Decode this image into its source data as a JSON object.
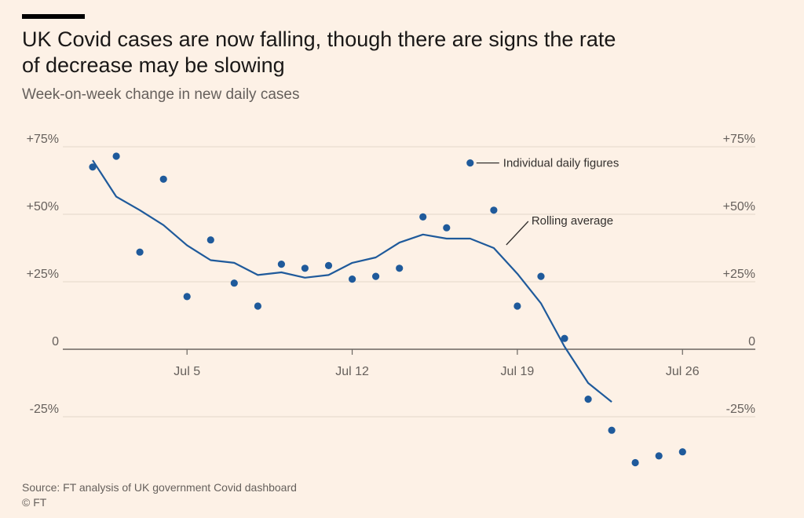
{
  "header": {
    "title": "UK Covid cases are now falling, though there are signs the rate of decrease may be slowing",
    "subtitle": "Week-on-week change in new daily cases"
  },
  "footer": {
    "source": "Source: FT analysis of UK government Covid dashboard",
    "copyright": "© FT"
  },
  "colors": {
    "background": "#fdf1e6",
    "series": "#1f5a9b",
    "gridline": "#e3d6cb",
    "zero_line": "#6b6661",
    "text": "#66605c"
  },
  "chart_data": {
    "type": "line",
    "title": "UK Covid cases are now falling, though there are signs the rate of decrease may be slowing",
    "subtitle": "Week-on-week change in new daily cases",
    "xlabel": "",
    "ylabel": "",
    "x_start": "Jul 1",
    "x_tick_labels": [
      {
        "day": 5,
        "label": "Jul 5"
      },
      {
        "day": 12,
        "label": "Jul 12"
      },
      {
        "day": 19,
        "label": "Jul 19"
      },
      {
        "day": 26,
        "label": "Jul 26"
      }
    ],
    "y_ticks": [
      {
        "value": 75,
        "label": "+75%"
      },
      {
        "value": 50,
        "label": "+50%"
      },
      {
        "value": 25,
        "label": "+25%"
      },
      {
        "value": 0,
        "label": "0"
      },
      {
        "value": -25,
        "label": "-25%"
      }
    ],
    "ylim": [
      -40,
      80
    ],
    "grid": true,
    "legend": "inside-top-right",
    "series": [
      {
        "name": "Individual daily figures",
        "style": "dots",
        "points": [
          {
            "day": 1,
            "value": 67.5
          },
          {
            "day": 2,
            "value": 71.5
          },
          {
            "day": 3,
            "value": 36.0
          },
          {
            "day": 4,
            "value": 63.0
          },
          {
            "day": 5,
            "value": 19.5
          },
          {
            "day": 6,
            "value": 40.5
          },
          {
            "day": 7,
            "value": 24.5
          },
          {
            "day": 8,
            "value": 16.0
          },
          {
            "day": 9,
            "value": 31.5
          },
          {
            "day": 10,
            "value": 30.0
          },
          {
            "day": 11,
            "value": 31.0
          },
          {
            "day": 12,
            "value": 26.0
          },
          {
            "day": 13,
            "value": 27.0
          },
          {
            "day": 14,
            "value": 30.0
          },
          {
            "day": 15,
            "value": 49.0
          },
          {
            "day": 16,
            "value": 45.0
          },
          {
            "day": 17,
            "value": 69.0
          },
          {
            "day": 18,
            "value": 51.5
          },
          {
            "day": 19,
            "value": 16.0
          },
          {
            "day": 20,
            "value": 27.0
          },
          {
            "day": 21,
            "value": 4.0
          },
          {
            "day": 22,
            "value": -18.5
          },
          {
            "day": 23,
            "value": -30.0
          },
          {
            "day": 24,
            "value": -42.0
          },
          {
            "day": 25,
            "value": -39.5
          },
          {
            "day": 26,
            "value": -38.0
          }
        ]
      },
      {
        "name": "Rolling average",
        "style": "line",
        "points": [
          {
            "day": 1,
            "value": 70.0
          },
          {
            "day": 2,
            "value": 56.5
          },
          {
            "day": 3,
            "value": 51.5
          },
          {
            "day": 4,
            "value": 46.0
          },
          {
            "day": 5,
            "value": 38.5
          },
          {
            "day": 6,
            "value": 33.0
          },
          {
            "day": 7,
            "value": 32.0
          },
          {
            "day": 8,
            "value": 27.5
          },
          {
            "day": 9,
            "value": 28.5
          },
          {
            "day": 10,
            "value": 26.5
          },
          {
            "day": 11,
            "value": 27.5
          },
          {
            "day": 12,
            "value": 32.0
          },
          {
            "day": 13,
            "value": 34.0
          },
          {
            "day": 14,
            "value": 39.5
          },
          {
            "day": 15,
            "value": 42.5
          },
          {
            "day": 16,
            "value": 41.0
          },
          {
            "day": 17,
            "value": 41.0
          },
          {
            "day": 18,
            "value": 37.5
          },
          {
            "day": 19,
            "value": 28.0
          },
          {
            "day": 20,
            "value": 17.0
          },
          {
            "day": 21,
            "value": 1.0
          },
          {
            "day": 22,
            "value": -12.5
          },
          {
            "day": 23,
            "value": -19.5
          }
        ]
      }
    ],
    "legend_entries": {
      "dots_label": "Individual daily figures",
      "line_label": "Rolling average"
    }
  }
}
